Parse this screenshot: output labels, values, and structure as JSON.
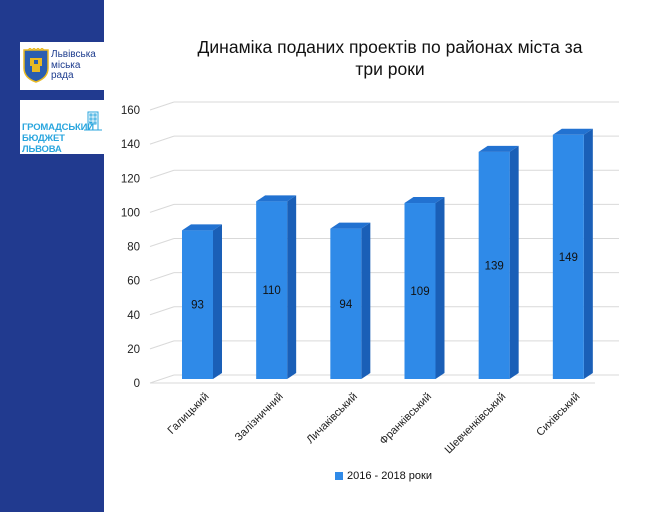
{
  "colors": {
    "sidebar": "#213a8f",
    "bar_front": "#2f8ae8",
    "bar_top": "#2272d1",
    "bar_side": "#1a5fb7",
    "city_text": "#1d3c8e",
    "budget_text": "#2aa6de"
  },
  "logos": {
    "city_icon": "lviv-coat-of-arms-icon",
    "city_text": "Львівська\nміська\nрада",
    "budget_icon": "building-grid-icon",
    "budget_text": "ГРОМАДСЬКИЙ\nБЮДЖЕТ ЛЬВОВА"
  },
  "chart_data": {
    "type": "bar",
    "title": "Динаміка поданих проектів по районах міста за\nтри роки",
    "categories": [
      "Галицький",
      "Залізничний",
      "Личаківський",
      "Франківський",
      "Шевченківський",
      "Сихівський"
    ],
    "series": [
      {
        "name": "2016 - 2018 роки",
        "values": [
          93,
          110,
          94,
          109,
          139,
          149
        ]
      }
    ],
    "ylim": [
      0,
      160
    ],
    "yticks": [
      0,
      20,
      40,
      60,
      80,
      100,
      120,
      140,
      160
    ],
    "grid": true,
    "legend_position": "bottom",
    "three_d": true
  }
}
